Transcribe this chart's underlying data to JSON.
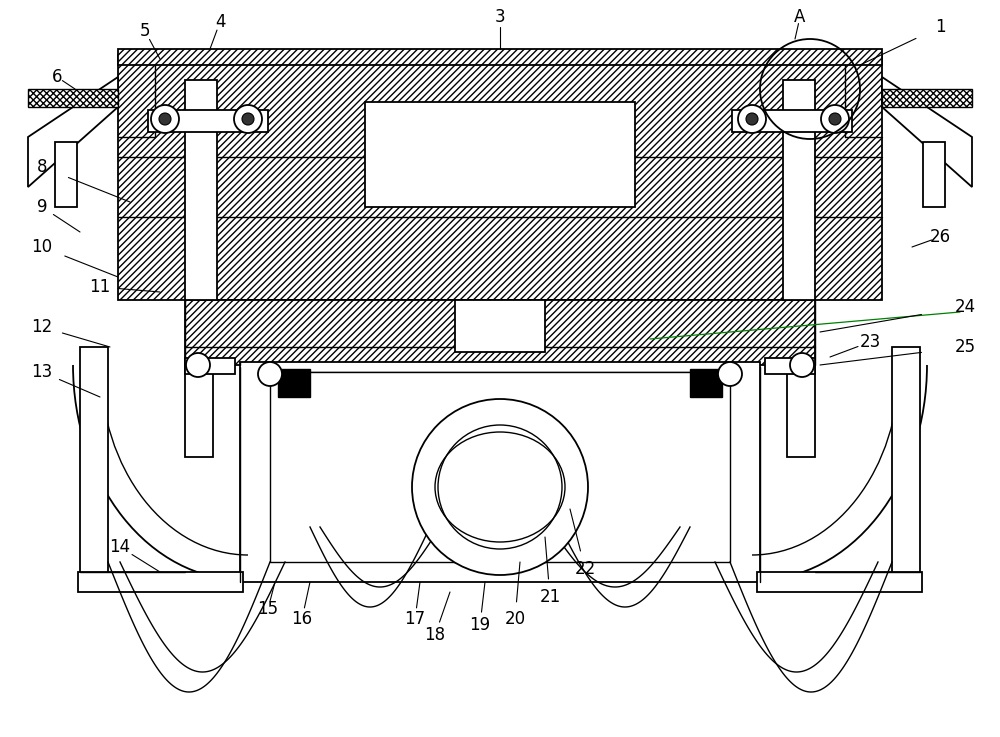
{
  "bg_color": "#ffffff",
  "line_color": "#000000",
  "label_color": "#000000",
  "label_fontsize": 12,
  "green_color": "#008000",
  "figsize": [
    10.0,
    7.37
  ],
  "dpi": 100
}
